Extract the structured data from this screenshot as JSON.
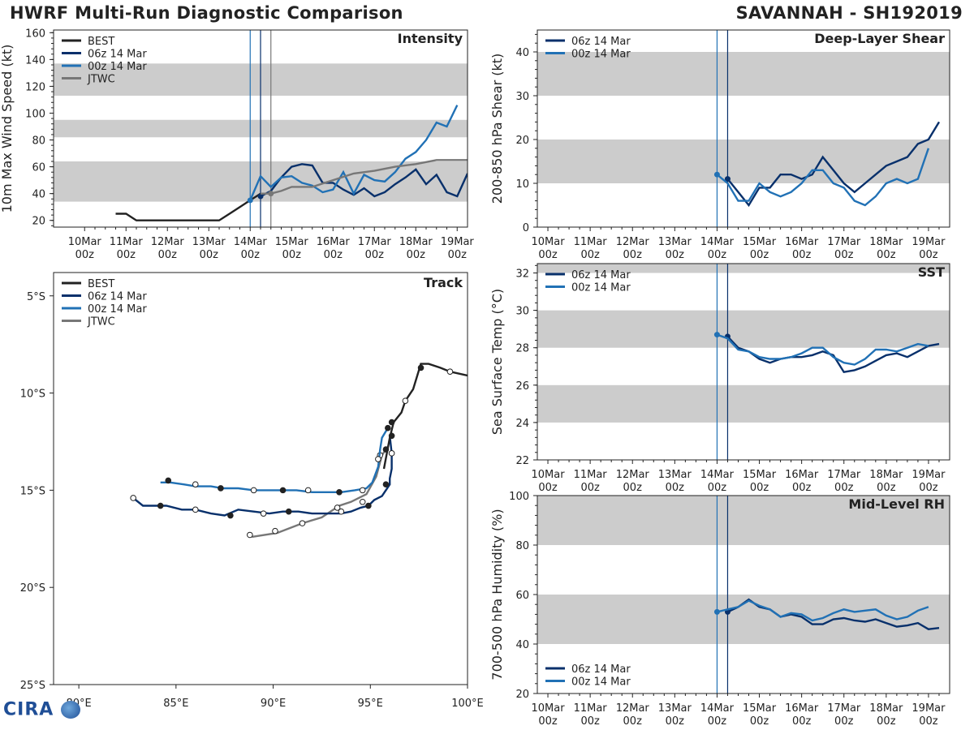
{
  "header": {
    "left_title": "HWRF Multi-Run Diagnostic Comparison",
    "right_title": "SAVANNAH - SH192019"
  },
  "logo": {
    "text": "CIRA"
  },
  "colors": {
    "best": "#222222",
    "run1": "#08306b",
    "run2": "#2171b5",
    "jtwc": "#777777",
    "band": "#cccccc"
  },
  "time_ticks": [
    {
      "day": "10Mar",
      "hour": "00z"
    },
    {
      "day": "11Mar",
      "hour": "00z"
    },
    {
      "day": "12Mar",
      "hour": "00z"
    },
    {
      "day": "13Mar",
      "hour": "00z"
    },
    {
      "day": "14Mar",
      "hour": "00z"
    },
    {
      "day": "15Mar",
      "hour": "00z"
    },
    {
      "day": "16Mar",
      "hour": "00z"
    },
    {
      "day": "17Mar",
      "hour": "00z"
    },
    {
      "day": "18Mar",
      "hour": "00z"
    },
    {
      "day": "19Mar",
      "hour": "00z"
    }
  ],
  "chart_data": [
    {
      "id": "intensity",
      "type": "line",
      "title": "Intensity",
      "ylabel": "10m Max Wind Speed (kt)",
      "x_units": "hours since 10Mar 00z",
      "xlim": [
        -18,
        222
      ],
      "ylim": [
        15,
        162
      ],
      "yticks": [
        20,
        40,
        60,
        80,
        100,
        120,
        140,
        160
      ],
      "bands": [
        [
          34,
          64
        ],
        [
          82,
          95
        ],
        [
          113,
          137
        ]
      ],
      "vlines": [
        {
          "x": 96,
          "series": "00z 14 Mar"
        },
        {
          "x": 102,
          "series": "06z 14 Mar"
        },
        {
          "x": 108,
          "series": "JTWC"
        }
      ],
      "legend": [
        "BEST",
        "06z 14 Mar",
        "00z 14 Mar",
        "JTWC"
      ],
      "series": [
        {
          "name": "BEST",
          "color_key": "best",
          "x": [
            18,
            24,
            30,
            36,
            42,
            48,
            54,
            60,
            66,
            72,
            78,
            84,
            90,
            96,
            102
          ],
          "y": [
            25,
            25,
            20,
            20,
            20,
            20,
            20,
            20,
            20,
            20,
            20,
            25,
            30,
            35,
            40
          ]
        },
        {
          "name": "06z 14 Mar",
          "color_key": "run1",
          "x": [
            102,
            108,
            114,
            120,
            126,
            132,
            138,
            144,
            150,
            156,
            162,
            168,
            174,
            180,
            186,
            192,
            198,
            204,
            210,
            216,
            222
          ],
          "y": [
            38,
            42,
            52,
            60,
            62,
            61,
            48,
            48,
            43,
            39,
            44,
            38,
            41,
            47,
            52,
            58,
            47,
            54,
            41,
            38,
            55
          ]
        },
        {
          "name": "00z 14 Mar",
          "color_key": "run2",
          "x": [
            96,
            102,
            108,
            114,
            120,
            126,
            132,
            138,
            144,
            150,
            156,
            162,
            168,
            174,
            180,
            186,
            192,
            198,
            204,
            210,
            216
          ],
          "y": [
            35,
            53,
            45,
            52,
            53,
            48,
            46,
            41,
            43,
            56,
            40,
            54,
            50,
            49,
            56,
            66,
            71,
            80,
            93,
            90,
            106
          ]
        },
        {
          "name": "JTWC",
          "color_key": "jtwc",
          "x": [
            102,
            108,
            114,
            120,
            126,
            132,
            144,
            156,
            168,
            180,
            192,
            204,
            216,
            222
          ],
          "y": [
            40,
            40,
            42,
            45,
            45,
            45,
            50,
            55,
            57,
            60,
            62,
            65,
            65,
            65
          ]
        }
      ]
    },
    {
      "id": "shear",
      "type": "line",
      "title": "Deep-Layer Shear",
      "ylabel": "200-850 hPa Shear (kt)",
      "x_units": "hours since 10Mar 00z",
      "xlim": [
        -6,
        228
      ],
      "ylim": [
        0,
        45
      ],
      "yticks": [
        0,
        10,
        20,
        30,
        40
      ],
      "bands": [
        [
          10,
          20
        ],
        [
          30,
          40
        ]
      ],
      "vlines": [
        {
          "x": 96,
          "series": "00z 14 Mar"
        },
        {
          "x": 102,
          "series": "06z 14 Mar"
        }
      ],
      "legend": [
        "06z 14 Mar",
        "00z 14 Mar"
      ],
      "series": [
        {
          "name": "06z 14 Mar",
          "color_key": "run1",
          "x": [
            102,
            108,
            114,
            120,
            126,
            132,
            138,
            144,
            150,
            156,
            162,
            168,
            174,
            180,
            186,
            192,
            198,
            204,
            210,
            216,
            222
          ],
          "y": [
            11,
            8,
            5,
            9,
            9,
            12,
            12,
            11,
            12,
            16,
            13,
            10,
            8,
            10,
            12,
            14,
            15,
            16,
            19,
            20,
            24
          ]
        },
        {
          "name": "00z 14 Mar",
          "color_key": "run2",
          "x": [
            96,
            102,
            108,
            114,
            120,
            126,
            132,
            138,
            144,
            150,
            156,
            162,
            168,
            174,
            180,
            186,
            192,
            198,
            204,
            210,
            216
          ],
          "y": [
            12,
            10,
            6,
            6,
            10,
            8,
            7,
            8,
            10,
            13,
            13,
            10,
            9,
            6,
            5,
            7,
            10,
            11,
            10,
            11,
            18
          ]
        }
      ]
    },
    {
      "id": "sst",
      "type": "line",
      "title": "SST",
      "ylabel": "Sea Surface Temp (°C)",
      "x_units": "hours since 10Mar 00z",
      "xlim": [
        -6,
        228
      ],
      "ylim": [
        22,
        32.5
      ],
      "yticks": [
        22,
        24,
        26,
        28,
        30,
        32
      ],
      "bands": [
        [
          24,
          26
        ],
        [
          28,
          30
        ],
        [
          32,
          34
        ]
      ],
      "vlines": [
        {
          "x": 96,
          "series": "00z 14 Mar"
        },
        {
          "x": 102,
          "series": "06z 14 Mar"
        }
      ],
      "legend": [
        "06z 14 Mar",
        "00z 14 Mar"
      ],
      "series": [
        {
          "name": "06z 14 Mar",
          "color_key": "run1",
          "x": [
            102,
            108,
            114,
            120,
            126,
            132,
            138,
            144,
            150,
            156,
            162,
            168,
            174,
            180,
            186,
            192,
            198,
            204,
            210,
            216,
            222
          ],
          "y": [
            28.6,
            28.0,
            27.8,
            27.4,
            27.2,
            27.4,
            27.5,
            27.5,
            27.6,
            27.8,
            27.6,
            26.7,
            26.8,
            27.0,
            27.3,
            27.6,
            27.7,
            27.5,
            27.8,
            28.1,
            28.2
          ]
        },
        {
          "name": "00z 14 Mar",
          "color_key": "run2",
          "x": [
            96,
            102,
            108,
            114,
            120,
            126,
            132,
            138,
            144,
            150,
            156,
            162,
            168,
            174,
            180,
            186,
            192,
            198,
            204,
            210,
            216
          ],
          "y": [
            28.7,
            28.5,
            27.9,
            27.8,
            27.5,
            27.4,
            27.4,
            27.5,
            27.7,
            28.0,
            28.0,
            27.5,
            27.2,
            27.1,
            27.4,
            27.9,
            27.9,
            27.8,
            28.0,
            28.2,
            28.1
          ]
        }
      ]
    },
    {
      "id": "rh",
      "type": "line",
      "title": "Mid-Level RH",
      "ylabel": "700-500 hPa Humidity (%)",
      "x_units": "hours since 10Mar 00z",
      "xlim": [
        -6,
        228
      ],
      "ylim": [
        20,
        100
      ],
      "yticks": [
        20,
        40,
        60,
        80,
        100
      ],
      "bands": [
        [
          40,
          60
        ],
        [
          80,
          100
        ]
      ],
      "vlines": [
        {
          "x": 96,
          "series": "00z 14 Mar"
        },
        {
          "x": 102,
          "series": "06z 14 Mar"
        }
      ],
      "legend": [
        "06z 14 Mar",
        "00z 14 Mar"
      ],
      "series": [
        {
          "name": "06z 14 Mar",
          "color_key": "run1",
          "x": [
            102,
            108,
            114,
            120,
            126,
            132,
            138,
            144,
            150,
            156,
            162,
            168,
            174,
            180,
            186,
            192,
            198,
            204,
            210,
            216,
            222
          ],
          "y": [
            53,
            55,
            58,
            55,
            54,
            51,
            52,
            51,
            48,
            48,
            50,
            50.5,
            49.5,
            49,
            50,
            48.5,
            47,
            47.5,
            48.5,
            46,
            46.5
          ]
        },
        {
          "name": "00z 14 Mar",
          "color_key": "run2",
          "x": [
            96,
            102,
            108,
            114,
            120,
            126,
            132,
            138,
            144,
            150,
            156,
            162,
            168,
            174,
            180,
            186,
            192,
            198,
            204,
            210,
            216
          ],
          "y": [
            53,
            54,
            55,
            57.5,
            55.5,
            54,
            51,
            52.5,
            52,
            49.5,
            50.5,
            52.5,
            54,
            53,
            53.5,
            54,
            51.5,
            50,
            51,
            53.5,
            55
          ]
        }
      ]
    },
    {
      "id": "track",
      "type": "scatter",
      "title": "Track",
      "xlim": [
        78.7,
        100
      ],
      "ylim": [
        -25,
        -3.8
      ],
      "xticks": [
        80,
        85,
        90,
        95,
        100
      ],
      "xtick_labels": [
        "80°E",
        "85°E",
        "90°E",
        "95°E",
        "100°E"
      ],
      "yticks": [
        -5,
        -10,
        -15,
        -20,
        -25
      ],
      "ytick_labels": [
        "5°S",
        "10°S",
        "15°S",
        "20°S",
        "25°S"
      ],
      "legend": [
        "BEST",
        "06z 14 Mar",
        "00z 14 Mar",
        "JTWC"
      ],
      "series": [
        {
          "name": "BEST",
          "color_key": "best",
          "lon": [
            100,
            99.1,
            98.6,
            98.0,
            97.6,
            97.2,
            96.8,
            96.6,
            96.2,
            96.0,
            95.7
          ],
          "lat": [
            -9.1,
            -8.9,
            -8.7,
            -8.5,
            -8.5,
            -9.8,
            -10.4,
            -11.0,
            -11.5,
            -12.3,
            -13.9
          ],
          "markers": [
            {
              "lon": 99.1,
              "lat": -8.9,
              "filled": false
            },
            {
              "lon": 97.6,
              "lat": -8.7,
              "filled": true
            },
            {
              "lon": 96.8,
              "lat": -10.4,
              "filled": false
            },
            {
              "lon": 96.1,
              "lat": -11.5,
              "filled": true
            }
          ]
        },
        {
          "name": "06z 14 Mar",
          "color_key": "run1",
          "lon": [
            96.0,
            96.1,
            96.1,
            96.0,
            96.0,
            95.8,
            95.6,
            95.2,
            94.9,
            94.5,
            94.0,
            93.5,
            92.8,
            92.0,
            91.3,
            90.5,
            89.8,
            89.0,
            88.2,
            87.5,
            86.8,
            86.0,
            85.3,
            84.5,
            83.8,
            83.3,
            82.8
          ],
          "lat": [
            -12.2,
            -13.1,
            -13.9,
            -14.4,
            -14.7,
            -15.0,
            -15.3,
            -15.5,
            -15.8,
            -15.9,
            -16.1,
            -16.2,
            -16.2,
            -16.2,
            -16.1,
            -16.1,
            -16.2,
            -16.1,
            -16.0,
            -16.3,
            -16.2,
            -16.0,
            -16.0,
            -15.8,
            -15.8,
            -15.8,
            -15.4
          ],
          "markers": [
            {
              "lon": 96.1,
              "lat": -12.2,
              "filled": true
            },
            {
              "lon": 96.1,
              "lat": -13.1,
              "filled": false
            },
            {
              "lon": 95.8,
              "lat": -14.7,
              "filled": true
            },
            {
              "lon": 94.9,
              "lat": -15.8,
              "filled": true
            },
            {
              "lon": 93.5,
              "lat": -16.1,
              "filled": false
            },
            {
              "lon": 90.8,
              "lat": -16.1,
              "filled": true
            },
            {
              "lon": 89.5,
              "lat": -16.2,
              "filled": false
            },
            {
              "lon": 87.8,
              "lat": -16.3,
              "filled": true
            },
            {
              "lon": 86.0,
              "lat": -16.0,
              "filled": false
            },
            {
              "lon": 84.2,
              "lat": -15.8,
              "filled": true
            },
            {
              "lon": 82.8,
              "lat": -15.4,
              "filled": false
            }
          ]
        },
        {
          "name": "00z 14 Mar",
          "color_key": "run2",
          "lon": [
            95.9,
            95.6,
            95.5,
            95.4,
            95.1,
            94.8,
            94.2,
            93.5,
            92.8,
            92.0,
            91.2,
            90.5,
            89.7,
            89.0,
            88.2,
            87.4,
            86.8,
            86.0,
            85.4,
            84.7,
            84.2
          ],
          "lat": [
            -11.8,
            -12.3,
            -12.9,
            -13.8,
            -14.6,
            -14.9,
            -15.0,
            -15.1,
            -15.1,
            -15.1,
            -15.0,
            -15.0,
            -15.0,
            -15.0,
            -14.9,
            -14.9,
            -14.8,
            -14.8,
            -14.7,
            -14.6,
            -14.6
          ],
          "markers": [
            {
              "lon": 95.9,
              "lat": -11.8,
              "filled": true
            },
            {
              "lon": 95.4,
              "lat": -13.4,
              "filled": false
            },
            {
              "lon": 94.6,
              "lat": -15.0,
              "filled": false
            },
            {
              "lon": 93.4,
              "lat": -15.1,
              "filled": true
            },
            {
              "lon": 91.8,
              "lat": -15.0,
              "filled": false
            },
            {
              "lon": 90.5,
              "lat": -15.0,
              "filled": true
            },
            {
              "lon": 89.0,
              "lat": -15.0,
              "filled": false
            },
            {
              "lon": 87.3,
              "lat": -14.9,
              "filled": true
            },
            {
              "lon": 86.0,
              "lat": -14.7,
              "filled": false
            },
            {
              "lon": 84.6,
              "lat": -14.5,
              "filled": true
            }
          ]
        },
        {
          "name": "JTWC",
          "color_key": "jtwc",
          "lon": [
            95.8,
            95.6,
            95.3,
            94.8,
            94.0,
            93.4,
            92.5,
            91.5,
            90.2,
            88.9
          ],
          "lat": [
            -12.9,
            -13.2,
            -14.3,
            -15.2,
            -15.6,
            -15.8,
            -16.4,
            -16.7,
            -17.2,
            -17.4
          ],
          "markers": [
            {
              "lon": 95.8,
              "lat": -12.9,
              "filled": true
            },
            {
              "lon": 95.5,
              "lat": -13.2,
              "filled": false
            },
            {
              "lon": 94.6,
              "lat": -15.6,
              "filled": false
            },
            {
              "lon": 93.3,
              "lat": -15.9,
              "filled": false
            },
            {
              "lon": 91.5,
              "lat": -16.7,
              "filled": false
            },
            {
              "lon": 90.1,
              "lat": -17.1,
              "filled": false
            },
            {
              "lon": 88.8,
              "lat": -17.3,
              "filled": false
            }
          ]
        }
      ]
    }
  ]
}
